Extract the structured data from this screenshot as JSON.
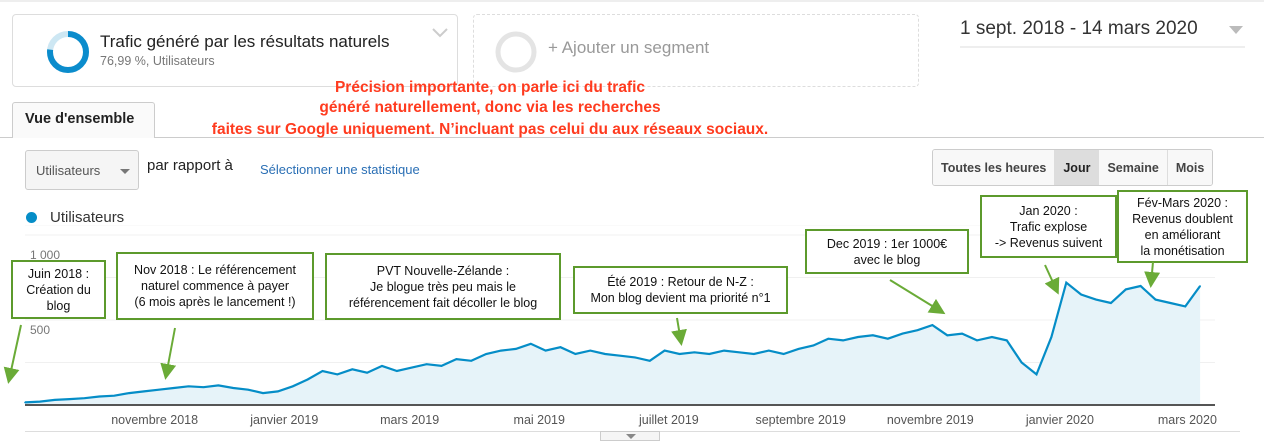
{
  "segment": {
    "title": "Trafic généré par les résultats naturels",
    "subtitle": "76,99 %, Utilisateurs",
    "percent": 76.99,
    "add_label": "+ Ajouter un segment"
  },
  "date_range": "1 sept. 2018 - 14 mars 2020",
  "note": [
    "Précision importante, on parle ici du trafic",
    "généré naturellement, donc via les recherches",
    "faites sur Google uniquement. N’incluant pas celui du aux réseaux sociaux."
  ],
  "tab": "Vue d'ensemble",
  "metric_select": "Utilisateurs",
  "compare_label": "par rapport à",
  "compare_link": "Sélectionner une statistique",
  "granularity": [
    "Toutes les heures",
    "Jour",
    "Semaine",
    "Mois"
  ],
  "granularity_selected": "Jour",
  "colors": {
    "line": "#058dc7",
    "fill": "#e6f3f9",
    "annotation_border": "#5c9a2c",
    "note": "#ff3b1f"
  },
  "chart_data": {
    "type": "area",
    "title": "",
    "legend": [
      "Utilisateurs"
    ],
    "legend_position": "top-left",
    "ylim": [
      0,
      1000
    ],
    "yticks": [
      "1 000",
      "500"
    ],
    "ytick_values": [
      1000,
      500
    ],
    "xtick_labels": [
      "novembre 2018",
      "janvier 2019",
      "mars 2019",
      "mai 2019",
      "juillet 2019",
      "septembre 2019",
      "novembre 2019",
      "janvier 2020",
      "mars 2020"
    ],
    "xtick_days": [
      61,
      122,
      181,
      242,
      303,
      365,
      426,
      487,
      547
    ],
    "x_start": "2018-09-01",
    "x_end": "2020-03-14",
    "interval_days": 7,
    "values": [
      15,
      20,
      30,
      35,
      40,
      50,
      55,
      70,
      80,
      90,
      100,
      110,
      105,
      115,
      100,
      90,
      70,
      80,
      110,
      150,
      200,
      180,
      210,
      190,
      230,
      200,
      220,
      240,
      230,
      270,
      260,
      300,
      320,
      330,
      360,
      320,
      340,
      300,
      320,
      300,
      290,
      280,
      260,
      320,
      300,
      310,
      300,
      320,
      310,
      300,
      320,
      300,
      330,
      350,
      390,
      380,
      400,
      410,
      390,
      420,
      440,
      470,
      410,
      420,
      380,
      400,
      380,
      250,
      180,
      400,
      720,
      650,
      620,
      600,
      680,
      700,
      620,
      600,
      580,
      700
    ],
    "annotations": [
      {
        "text": "Juin 2018 :\nCréation du\nblog"
      },
      {
        "text": "Nov 2018 : Le référencement\nnaturel commence à payer\n(6 mois après le lancement !)"
      },
      {
        "text": "PVT Nouvelle-Zélande :\nJe blogue très peu mais le\nréférencement fait décoller le blog"
      },
      {
        "text": "Été 2019 : Retour de N-Z :\nMon blog devient ma priorité n°1"
      },
      {
        "text": "Dec 2019 : 1er 1000€\navec le blog"
      },
      {
        "text": "Jan 2020 :\nTrafic explose\n-> Revenus suivent"
      },
      {
        "text": "Fév-Mars 2020 :\nRevenus doublent\nen améliorant\nla monétisation"
      }
    ]
  }
}
